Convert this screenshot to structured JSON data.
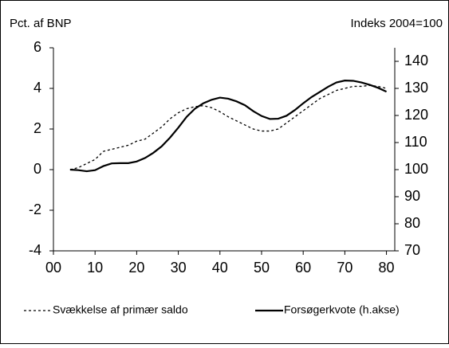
{
  "chart_data": {
    "type": "line",
    "y_label": "Pct. af BNP",
    "y2_label": "Indeks 2004=100",
    "x": [
      4,
      6,
      8,
      10,
      12,
      14,
      16,
      18,
      20,
      22,
      24,
      26,
      28,
      30,
      32,
      34,
      36,
      38,
      40,
      42,
      44,
      46,
      48,
      50,
      52,
      54,
      56,
      58,
      60,
      62,
      64,
      66,
      68,
      70,
      72,
      74,
      76,
      78,
      80
    ],
    "series": [
      {
        "name": "Svækkelse af primær saldo",
        "color": "#000000",
        "dash": true,
        "axis": "y",
        "values": [
          0,
          0.1,
          0.3,
          0.5,
          0.9,
          1.0,
          1.1,
          1.2,
          1.4,
          1.5,
          1.8,
          2.1,
          2.5,
          2.8,
          3.0,
          3.1,
          3.15,
          3.05,
          2.85,
          2.6,
          2.4,
          2.2,
          2.0,
          1.9,
          1.9,
          2.0,
          2.3,
          2.6,
          2.9,
          3.2,
          3.5,
          3.7,
          3.9,
          4.0,
          4.1,
          4.1,
          4.15,
          4.1,
          4.0
        ]
      },
      {
        "name": "Forsøgerkvote (h.akse)",
        "color": "#000000",
        "dash": false,
        "axis": "y2",
        "values": [
          100,
          99.8,
          99.4,
          99.8,
          101.3,
          102.3,
          102.4,
          102.4,
          103,
          104.3,
          106.2,
          108.6,
          111.8,
          115.5,
          119.5,
          122.5,
          124.5,
          125.8,
          126.6,
          126.2,
          125.2,
          123.8,
          121.6,
          119.8,
          118.7,
          118.8,
          119.9,
          122,
          124.5,
          126.8,
          128.7,
          130.6,
          132.2,
          132.9,
          132.8,
          132.2,
          131.3,
          130.2,
          128.8
        ]
      }
    ],
    "xlim": [
      0,
      82
    ],
    "xticks": [
      {
        "value": 0,
        "label": "00"
      },
      10,
      20,
      30,
      40,
      50,
      60,
      70,
      80
    ],
    "ylim": [
      -4,
      6
    ],
    "yticks": [
      -4,
      -2,
      0,
      2,
      4,
      6
    ],
    "y2lim": [
      70,
      145
    ],
    "y2ticks": [
      70,
      80,
      90,
      100,
      110,
      120,
      130,
      140
    ],
    "grid": false
  }
}
